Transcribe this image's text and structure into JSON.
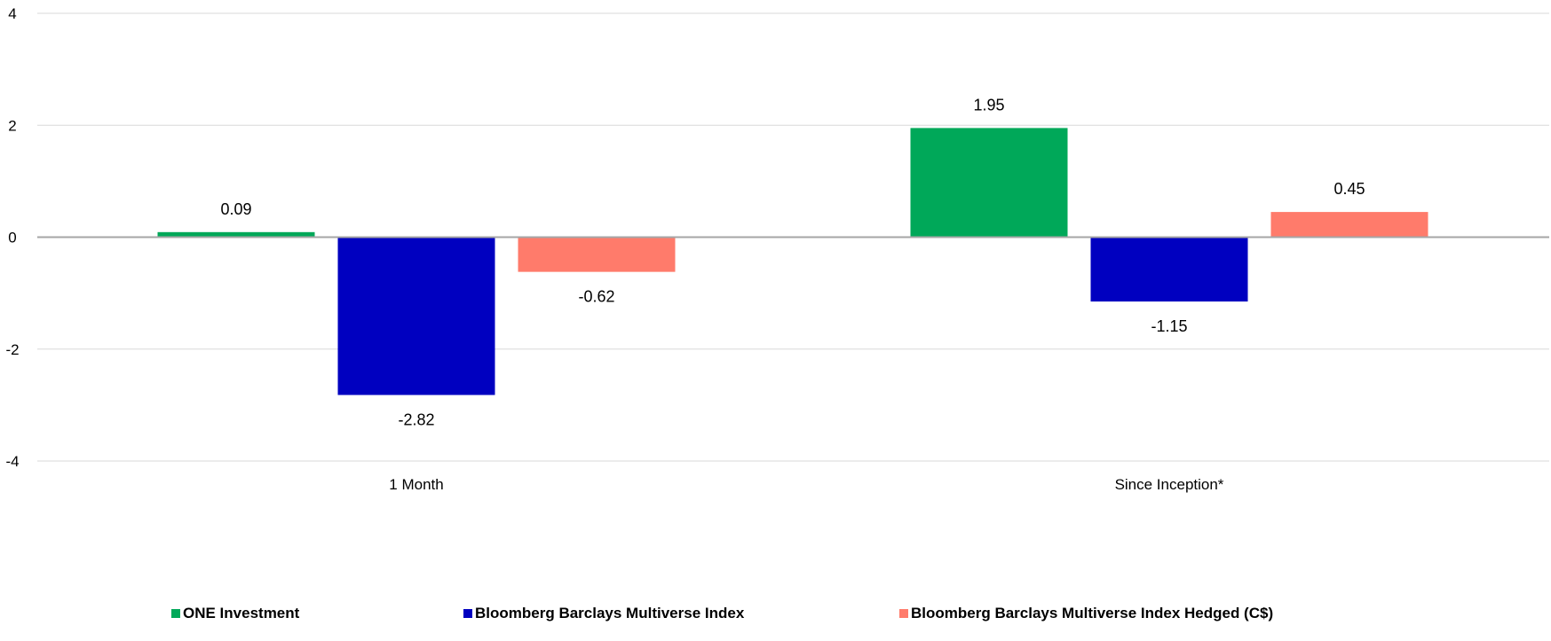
{
  "chart_data": {
    "type": "bar",
    "title": "",
    "xlabel": "",
    "ylabel": "",
    "categories": [
      "1 Month",
      "Since Inception*"
    ],
    "series": [
      {
        "name": "ONE Investment",
        "color": "#00A859",
        "values": [
          0.09,
          1.95
        ],
        "labels": [
          "0.09",
          "1.95"
        ]
      },
      {
        "name": "Bloomberg Barclays Multiverse Index",
        "color": "#0000C0",
        "values": [
          -2.82,
          -1.15
        ],
        "labels": [
          "-2.82",
          "-1.15"
        ]
      },
      {
        "name": "Bloomberg Barclays Multiverse Index Hedged (C$)",
        "color": "#FF7B6B",
        "values": [
          -0.62,
          0.45
        ],
        "labels": [
          "-0.62",
          "0.45"
        ]
      }
    ],
    "ylim": [
      -4,
      4
    ],
    "yticks": [
      -4,
      -2,
      0,
      2,
      4
    ],
    "ytick_labels": [
      "-4",
      "-2",
      "0",
      "2",
      "4"
    ],
    "grid": true,
    "legend_position": "bottom"
  }
}
